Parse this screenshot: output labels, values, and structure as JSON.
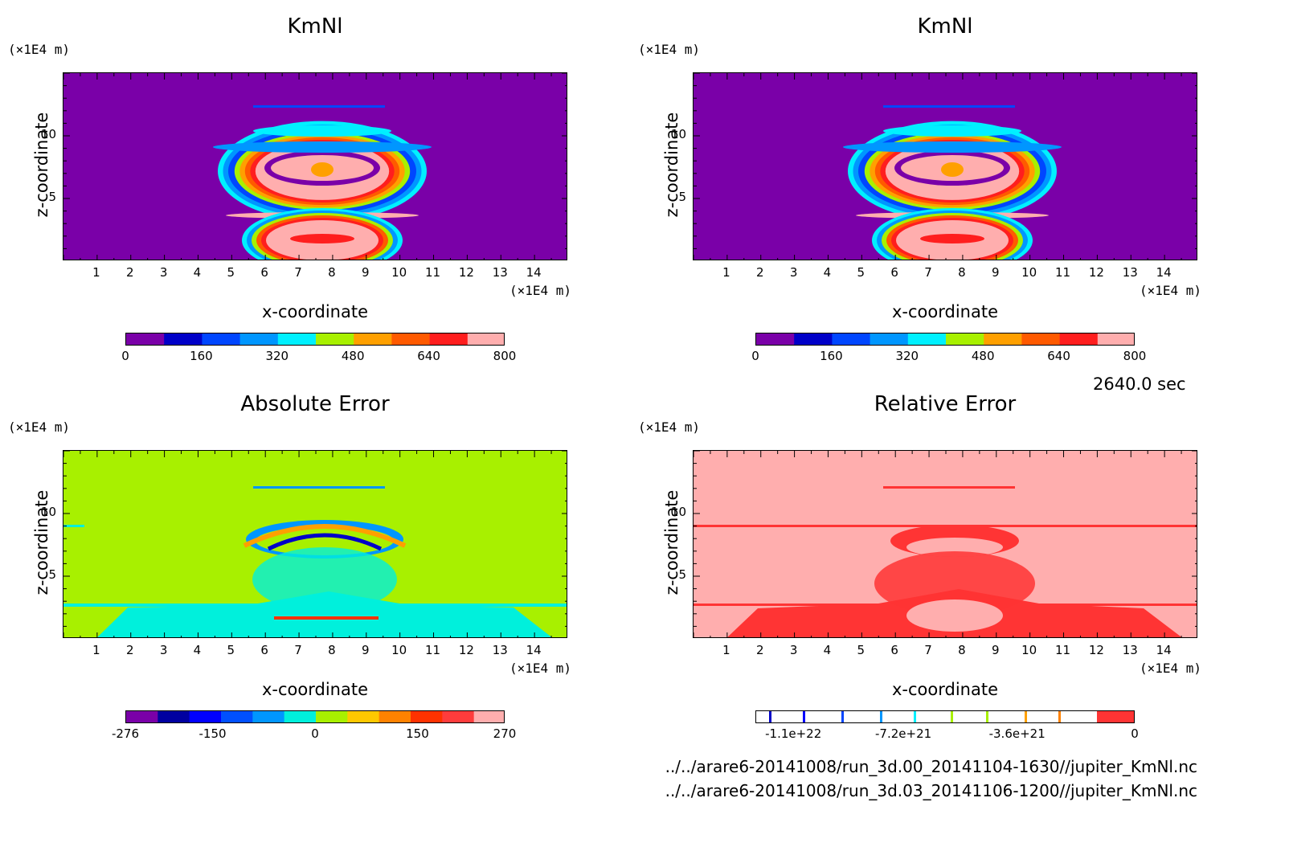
{
  "time_label": "2640.0 sec",
  "files": [
    "../../arare6-20141008/run_3d.00_20141104-1630//jupiter_KmNl.nc",
    "../../arare6-20141008/run_3d.03_20141106-1200//jupiter_KmNl.nc"
  ],
  "colors": {
    "purple": "#7a00a8",
    "lime": "#a8f000",
    "cyan": "#00f0dc",
    "pink": "#ffaeae",
    "red": "#ff3434"
  },
  "panels": [
    {
      "title": "KmNl",
      "xlabel": "x-coordinate",
      "ylabel": "z-coordinate",
      "x_unit": "(×1E4 m)",
      "y_unit": "(×1E4 m)",
      "colorbar": {
        "ticks": [
          "0",
          "160",
          "320",
          "480",
          "640",
          "800"
        ],
        "colors": [
          "#7a00a8",
          "#0000c8",
          "#0046ff",
          "#0096ff",
          "#00f0ff",
          "#a8f000",
          "#ffa000",
          "#ff5a00",
          "#ff1e1e",
          "#ffaeae"
        ]
      }
    },
    {
      "title": "KmNl",
      "xlabel": "x-coordinate",
      "ylabel": "z-coordinate",
      "x_unit": "(×1E4 m)",
      "y_unit": "(×1E4 m)",
      "colorbar": {
        "ticks": [
          "0",
          "160",
          "320",
          "480",
          "640",
          "800"
        ],
        "colors": [
          "#7a00a8",
          "#0000c8",
          "#0046ff",
          "#0096ff",
          "#00f0ff",
          "#a8f000",
          "#ffa000",
          "#ff5a00",
          "#ff1e1e",
          "#ffaeae"
        ]
      }
    },
    {
      "title": "Absolute Error",
      "xlabel": "x-coordinate",
      "ylabel": "z-coordinate",
      "x_unit": "(×1E4 m)",
      "y_unit": "(×1E4 m)",
      "colorbar": {
        "ticks": [
          "-276",
          "-150",
          "0",
          "150",
          "270"
        ],
        "colors": [
          "#7a00a8",
          "#0000a0",
          "#0000ff",
          "#0050ff",
          "#0096ff",
          "#00f0dc",
          "#a8f000",
          "#ffc800",
          "#ff8200",
          "#ff3200",
          "#ff3c3c",
          "#ffaeae"
        ]
      }
    },
    {
      "title": "Relative Error",
      "xlabel": "x-coordinate",
      "ylabel": "z-coordinate",
      "x_unit": "(×1E4 m)",
      "y_unit": "(×1E4 m)",
      "colorbar": {
        "ticks": [
          "-1.1e+22",
          "-7.2e+21",
          "-3.6e+21",
          "0"
        ]
      }
    }
  ],
  "chart_data": [
    {
      "type": "heatmap",
      "title": "KmNl",
      "xlabel": "x-coordinate",
      "ylabel": "z-coordinate",
      "x_ticks": [
        1,
        2,
        3,
        4,
        5,
        6,
        7,
        8,
        9,
        10,
        11,
        12,
        13,
        14
      ],
      "y_ticks": [
        5,
        10
      ],
      "xlim": [
        0,
        15
      ],
      "ylim": [
        0,
        15
      ],
      "colorbar_range": [
        0,
        800
      ],
      "colorbar_ticks": [
        0,
        160,
        320,
        480,
        640,
        800
      ]
    },
    {
      "type": "heatmap",
      "title": "KmNl",
      "xlabel": "x-coordinate",
      "ylabel": "z-coordinate",
      "x_ticks": [
        1,
        2,
        3,
        4,
        5,
        6,
        7,
        8,
        9,
        10,
        11,
        12,
        13,
        14
      ],
      "y_ticks": [
        5,
        10
      ],
      "xlim": [
        0,
        15
      ],
      "ylim": [
        0,
        15
      ],
      "colorbar_range": [
        0,
        800
      ],
      "colorbar_ticks": [
        0,
        160,
        320,
        480,
        640,
        800
      ]
    },
    {
      "type": "heatmap",
      "title": "Absolute Error",
      "xlabel": "x-coordinate",
      "ylabel": "z-coordinate",
      "x_ticks": [
        1,
        2,
        3,
        4,
        5,
        6,
        7,
        8,
        9,
        10,
        11,
        12,
        13,
        14
      ],
      "y_ticks": [
        5,
        10
      ],
      "xlim": [
        0,
        15
      ],
      "ylim": [
        0,
        15
      ],
      "colorbar_range": [
        -276,
        270
      ],
      "colorbar_ticks": [
        -276,
        -150,
        0,
        150,
        270
      ]
    },
    {
      "type": "heatmap",
      "title": "Relative Error",
      "xlabel": "x-coordinate",
      "ylabel": "z-coordinate",
      "x_ticks": [
        1,
        2,
        3,
        4,
        5,
        6,
        7,
        8,
        9,
        10,
        11,
        12,
        13,
        14
      ],
      "y_ticks": [
        5,
        10
      ],
      "xlim": [
        0,
        15
      ],
      "ylim": [
        0,
        15
      ],
      "colorbar_ticks": [
        "-1.1e+22",
        "-7.2e+21",
        "-3.6e+21",
        "0"
      ]
    }
  ]
}
